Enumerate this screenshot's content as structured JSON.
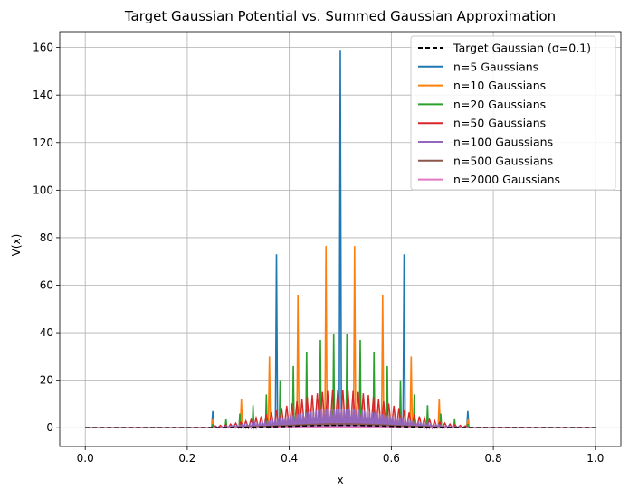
{
  "chart_data": {
    "type": "line",
    "title": "Target Gaussian Potential vs. Summed Gaussian Approximation",
    "xlabel": "x",
    "ylabel": "V(x)",
    "xlim": [
      -0.05,
      1.05
    ],
    "ylim": [
      -7.9,
      166.7
    ],
    "xticks": [
      0.0,
      0.2,
      0.4,
      0.6,
      0.8,
      1.0
    ],
    "xtick_labels": [
      "0.0",
      "0.2",
      "0.4",
      "0.6",
      "0.8",
      "1.0"
    ],
    "yticks": [
      0,
      20,
      40,
      60,
      80,
      100,
      120,
      140,
      160
    ],
    "ytick_labels": [
      "0",
      "20",
      "40",
      "60",
      "80",
      "100",
      "120",
      "140",
      "160"
    ],
    "grid": true,
    "legend_position": "top-right",
    "target": {
      "name": "Target Gaussian (σ=0.1)",
      "center": 0.5,
      "sigma": 0.1,
      "amplitude": 1.0,
      "color": "#000000",
      "style": "dashed"
    },
    "series": [
      {
        "name": "n=5 Gaussians",
        "n": 5,
        "color": "#1f77b4",
        "peaks": [
          [
            0.25,
            7.0
          ],
          [
            0.375,
            73.0
          ],
          [
            0.5,
            159.0
          ],
          [
            0.625,
            73.0
          ],
          [
            0.75,
            7.0
          ]
        ]
      },
      {
        "name": "n=10 Gaussians",
        "n": 10,
        "color": "#ff7f0e",
        "peaks": [
          [
            0.25,
            3.5
          ],
          [
            0.306,
            12.0
          ],
          [
            0.361,
            30.0
          ],
          [
            0.417,
            56.0
          ],
          [
            0.472,
            76.5
          ],
          [
            0.528,
            76.5
          ],
          [
            0.583,
            56.0
          ],
          [
            0.639,
            30.0
          ],
          [
            0.694,
            12.0
          ],
          [
            0.75,
            3.5
          ]
        ]
      },
      {
        "name": "n=20 Gaussians",
        "n": 20,
        "color": "#2ca02c",
        "peaks": [
          [
            0.25,
            1.6
          ],
          [
            0.276,
            3.5
          ],
          [
            0.303,
            6.0
          ],
          [
            0.329,
            9.5
          ],
          [
            0.355,
            14.0
          ],
          [
            0.382,
            20.0
          ],
          [
            0.408,
            26.0
          ],
          [
            0.434,
            32.0
          ],
          [
            0.461,
            37.0
          ],
          [
            0.487,
            39.5
          ],
          [
            0.513,
            39.5
          ],
          [
            0.539,
            37.0
          ],
          [
            0.566,
            32.0
          ],
          [
            0.592,
            26.0
          ],
          [
            0.618,
            20.0
          ],
          [
            0.645,
            14.0
          ],
          [
            0.671,
            9.5
          ],
          [
            0.697,
            6.0
          ],
          [
            0.724,
            3.5
          ],
          [
            0.75,
            1.6
          ]
        ]
      },
      {
        "name": "n=50 Gaussians",
        "n": 50,
        "color": "#d62728",
        "amplitude": 16.0
      },
      {
        "name": "n=100 Gaussians",
        "n": 100,
        "color": "#9467bd",
        "amplitude": 8.0
      },
      {
        "name": "n=500 Gaussians",
        "n": 500,
        "color": "#8c564b",
        "amplitude": 1.6
      },
      {
        "name": "n=2000 Gaussians",
        "n": 2000,
        "color": "#e377c2",
        "amplitude": 0.4
      }
    ]
  }
}
